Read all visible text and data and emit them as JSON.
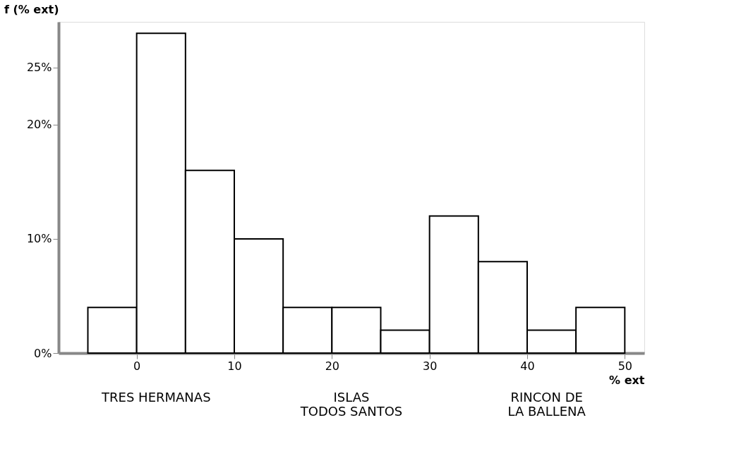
{
  "chart_data": {
    "type": "histogram",
    "xlabel": "% ext",
    "ylabel": "f (% ext)",
    "bins": [
      -5,
      0,
      5,
      10,
      15,
      20,
      25,
      30,
      35,
      40,
      45,
      50
    ],
    "values": [
      4,
      28,
      16,
      10,
      4,
      4,
      2,
      12,
      8,
      2,
      4
    ],
    "color": "#ffffff",
    "xlim": [
      -8,
      52
    ],
    "xticks": [
      0,
      10,
      20,
      30,
      40,
      50
    ],
    "ylim": [
      0,
      29
    ],
    "yticks": [
      {
        "value": 0,
        "label": "0%"
      },
      {
        "value": 10,
        "label": "10%"
      },
      {
        "value": 20,
        "label": "20%"
      },
      {
        "value": 25,
        "label": "25%"
      }
    ],
    "grid": false,
    "annotations": [
      "TRES HERMANAS",
      "ISLAS\nTODOS SANTOS",
      "RINCON DE\nLA BALLENA"
    ]
  }
}
